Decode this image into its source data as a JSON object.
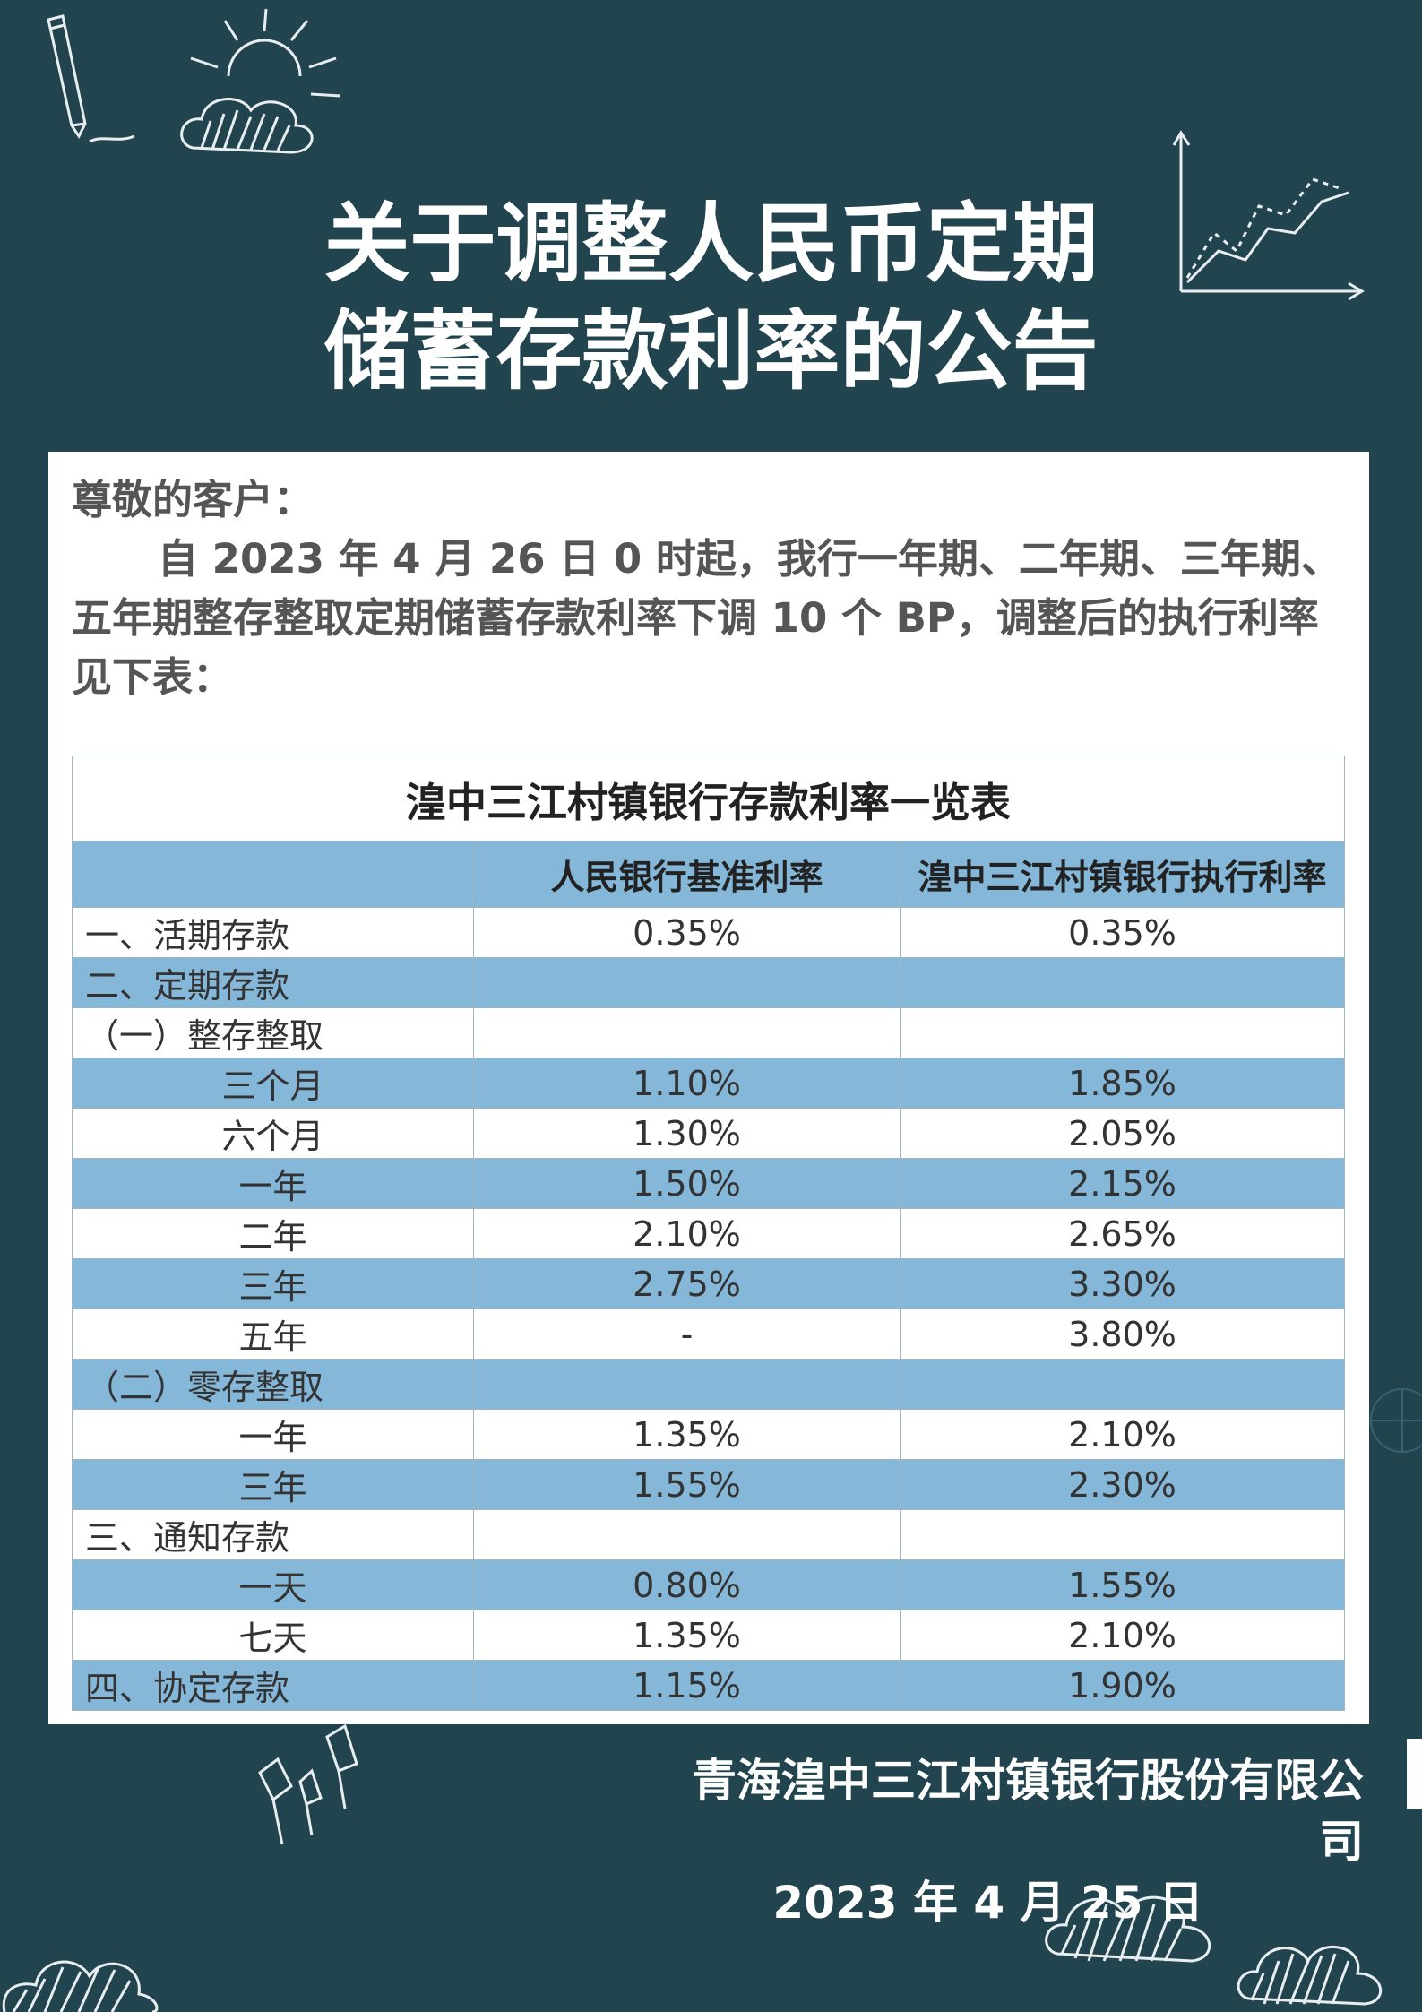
{
  "title": {
    "line1": "关于调整人民币定期",
    "line2": "储蓄存款利率的公告"
  },
  "notice": {
    "greeting": "尊敬的客户：",
    "body": "自 2023 年 4 月 26 日 0 时起，我行一年期、二年期、三年期、五年期整存整取定期储蓄存款利率下调 10 个 BP，调整后的执行利率见下表："
  },
  "table": {
    "caption": "湟中三江村镇银行存款利率一览表",
    "headers": [
      "",
      "人民银行基准利率",
      "湟中三江村镇银行执行利率"
    ],
    "rows": [
      {
        "label": "一、活期存款",
        "level": 0,
        "base": "0.35%",
        "exec": "0.35%",
        "shade": "white"
      },
      {
        "label": "二、定期存款",
        "level": 0,
        "base": "",
        "exec": "",
        "shade": "blue"
      },
      {
        "label": "（一）整存整取",
        "level": 1,
        "base": "",
        "exec": "",
        "shade": "white"
      },
      {
        "label": "三个月",
        "level": 2,
        "base": "1.10%",
        "exec": "1.85%",
        "shade": "blue"
      },
      {
        "label": "六个月",
        "level": 2,
        "base": "1.30%",
        "exec": "2.05%",
        "shade": "white"
      },
      {
        "label": "一年",
        "level": 2,
        "base": "1.50%",
        "exec": "2.15%",
        "shade": "blue"
      },
      {
        "label": "二年",
        "level": 2,
        "base": "2.10%",
        "exec": "2.65%",
        "shade": "white"
      },
      {
        "label": "三年",
        "level": 2,
        "base": "2.75%",
        "exec": "3.30%",
        "shade": "blue"
      },
      {
        "label": "五年",
        "level": 2,
        "base": "-",
        "exec": "3.80%",
        "shade": "white"
      },
      {
        "label": "（二）零存整取",
        "level": 1,
        "base": "",
        "exec": "",
        "shade": "blue"
      },
      {
        "label": "一年",
        "level": 2,
        "base": "1.35%",
        "exec": "2.10%",
        "shade": "white"
      },
      {
        "label": "三年",
        "level": 2,
        "base": "1.55%",
        "exec": "2.30%",
        "shade": "blue"
      },
      {
        "label": "三、通知存款",
        "level": 0,
        "base": "",
        "exec": "",
        "shade": "white"
      },
      {
        "label": "一天",
        "level": 2,
        "base": "0.80%",
        "exec": "1.55%",
        "shade": "blue"
      },
      {
        "label": "七天",
        "level": 2,
        "base": "1.35%",
        "exec": "2.10%",
        "shade": "white"
      },
      {
        "label": "四、协定存款",
        "level": 0,
        "base": "1.15%",
        "exec": "1.90%",
        "shade": "blue"
      }
    ]
  },
  "footer": {
    "company": "青海湟中三江村镇银行股份有限公司",
    "date": "2023 年 4 月 25 日"
  },
  "colors": {
    "background": "#21444f",
    "row_blue": "#84b7d8",
    "panel": "#ffffff"
  },
  "decorations": [
    "pencil-icon",
    "sun-cloud-icon",
    "line-chart-icon",
    "pen-nibs-icon",
    "cloud-icon",
    "globe-icon"
  ]
}
